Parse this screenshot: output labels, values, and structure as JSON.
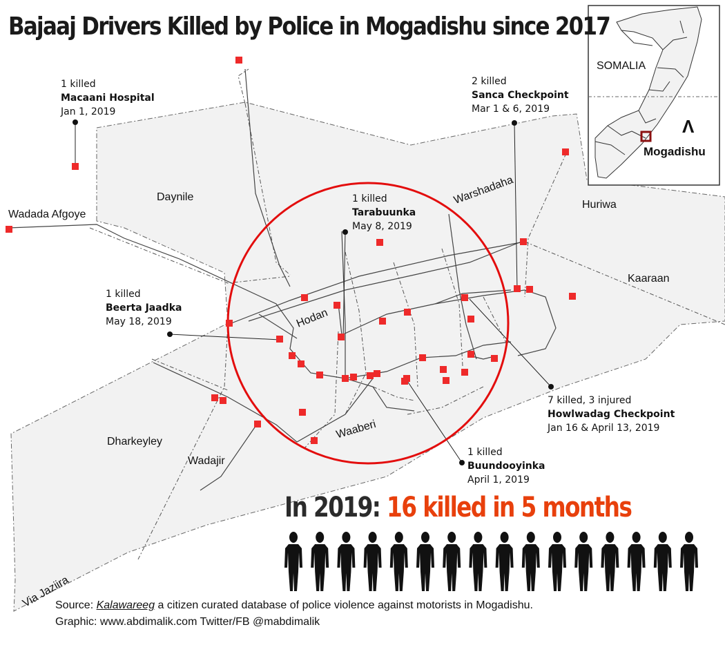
{
  "title": "Bajaaj Drivers Killed by Police in Mogadishu since 2017",
  "incidents": [
    {
      "count": "1 killed",
      "place": "Macaani Hospital",
      "date": "Jan 1, 2019"
    },
    {
      "count": "2 killed",
      "place": "Sanca Checkpoint",
      "date": "Mar 1 & 6, 2019"
    },
    {
      "count": "1 killed",
      "place": "Tarabuunka",
      "date": "May 8, 2019"
    },
    {
      "count": "1 killed",
      "place": "Beerta Jaadka",
      "date": "May 18, 2019"
    },
    {
      "count": "7 killed, 3 injured",
      "place": "Howlwadag Checkpoint",
      "date": "Jan 16 & April 13, 2019"
    },
    {
      "count": "1 killed",
      "place": "Buundooyinka",
      "date": "April 1, 2019"
    }
  ],
  "districts": [
    "Daynile",
    "Huriwa",
    "Kaaraan",
    "Hodan",
    "Dharkeyley",
    "Wadajir",
    "Waaberi"
  ],
  "roads": [
    "Wadada Afgoye",
    "Warshadaha",
    "Via Jaziira"
  ],
  "inset": {
    "country": "SOMALIA",
    "city": "Mogadishu",
    "north_symbol": "Λ"
  },
  "stat": {
    "lead": "In 2019:",
    "highlight": "16 killed in 5 months",
    "figure_count": 16
  },
  "source": {
    "prefix": "Source: ",
    "database": "Kalawareeg",
    "rest": " a citizen curated database of police violence against motorists in Mogadishu."
  },
  "credit": "Graphic: www.abdimalik.com Twitter/FB @mabdimalik",
  "colors": {
    "marker": "#ee2a2a",
    "circle": "#e30d0d",
    "highlight": "#e8400c",
    "land": "#f2f2f2",
    "figure": "#111111",
    "inset_marker": "#8b1010"
  }
}
